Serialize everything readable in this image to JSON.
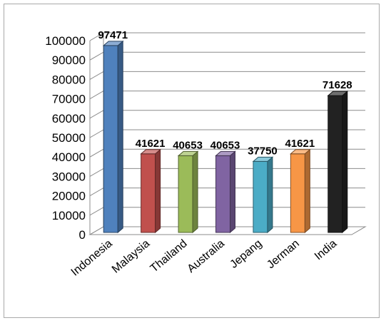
{
  "chart_data": {
    "type": "bar",
    "categories": [
      "Indonesia",
      "Malaysia",
      "Thailand",
      "Australia",
      "Jepang",
      "Jerman",
      "India"
    ],
    "values": [
      97471,
      41621,
      40653,
      40653,
      37750,
      41621,
      71628
    ],
    "data_labels": [
      "97471",
      "41621",
      "40653",
      "40653",
      "37750",
      "41621",
      "71628"
    ],
    "ylim": [
      0,
      100000
    ],
    "yticks": [
      0,
      10000,
      20000,
      30000,
      40000,
      50000,
      60000,
      70000,
      80000,
      90000,
      100000
    ],
    "ytick_labels": [
      "0",
      "10000",
      "20000",
      "30000",
      "40000",
      "50000",
      "60000",
      "70000",
      "80000",
      "90000",
      "100000"
    ],
    "grid": true,
    "style": "3d-column",
    "colors": [
      "#4f81bd",
      "#c0504d",
      "#9bbb59",
      "#8064a2",
      "#4bacc6",
      "#f79646",
      "#222222"
    ]
  }
}
